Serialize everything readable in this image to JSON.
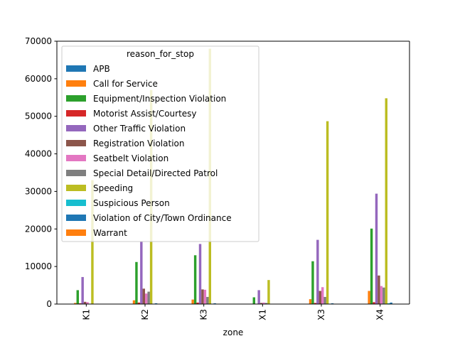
{
  "chart_data": {
    "type": "bar",
    "title": "",
    "xlabel": "zone",
    "ylabel": "",
    "ylim": [
      0,
      70000
    ],
    "yticks": [
      0,
      10000,
      20000,
      30000,
      40000,
      50000,
      60000,
      70000
    ],
    "categories": [
      "K1",
      "K2",
      "K3",
      "X1",
      "X3",
      "X4"
    ],
    "grid": false,
    "legend": {
      "title": "reason_for_stop",
      "placement": "upper-left"
    },
    "series": [
      {
        "name": "APB",
        "color": "#1f77b4",
        "values": [
          10,
          30,
          30,
          10,
          30,
          40
        ]
      },
      {
        "name": "Call for Service",
        "color": "#ff7f0e",
        "values": [
          300,
          1000,
          1200,
          100,
          1300,
          3500
        ]
      },
      {
        "name": "Equipment/Inspection Violation",
        "color": "#2ca02c",
        "values": [
          3700,
          11200,
          13000,
          1800,
          11400,
          20100
        ]
      },
      {
        "name": "Motorist Assist/Courtesy",
        "color": "#d62728",
        "values": [
          200,
          400,
          400,
          100,
          300,
          500
        ]
      },
      {
        "name": "Other Traffic Violation",
        "color": "#9467bd",
        "values": [
          7200,
          16600,
          16000,
          3700,
          17100,
          29400
        ]
      },
      {
        "name": "Registration Violation",
        "color": "#8c564b",
        "values": [
          600,
          4100,
          3900,
          300,
          3500,
          7600
        ]
      },
      {
        "name": "Seatbelt Violation",
        "color": "#e377c2",
        "values": [
          500,
          2800,
          3800,
          400,
          4500,
          4800
        ]
      },
      {
        "name": "Special Detail/Directed Patrol",
        "color": "#7f7f7f",
        "values": [
          100,
          3300,
          1900,
          300,
          1900,
          4400
        ]
      },
      {
        "name": "Speeding",
        "color": "#bcbd22",
        "values": [
          33000,
          57000,
          68000,
          6400,
          48700,
          54800
        ]
      },
      {
        "name": "Suspicious Person",
        "color": "#17becf",
        "values": [
          50,
          100,
          100,
          30,
          100,
          200
        ]
      },
      {
        "name": "Violation of City/Town Ordinance",
        "color": "#1f77b4",
        "values": [
          100,
          200,
          200,
          30,
          200,
          400
        ]
      },
      {
        "name": "Warrant",
        "color": "#ff7f0e",
        "values": [
          20,
          40,
          40,
          10,
          40,
          60
        ]
      }
    ]
  }
}
